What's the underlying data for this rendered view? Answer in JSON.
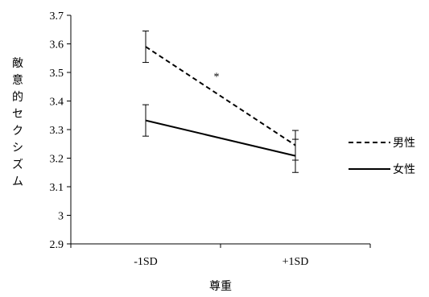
{
  "chart_data": {
    "type": "line",
    "categories": [
      "-1SD",
      "+1SD"
    ],
    "xlabel": "尊重",
    "ylabel": "敵意的セクシズム",
    "ylim": [
      2.9,
      3.7
    ],
    "yticks": [
      "2.9",
      "3",
      "3.1",
      "3.2",
      "3.3",
      "3.4",
      "3.5",
      "3.6",
      "3.7"
    ],
    "grid": false,
    "legend_position": "right",
    "series": [
      {
        "name": "男性",
        "line_style": "dashed",
        "color": "#000000",
        "values": [
          3.59,
          3.245
        ],
        "errors": [
          0.055,
          0.052
        ]
      },
      {
        "name": "女性",
        "line_style": "solid",
        "color": "#000000",
        "values": [
          3.332,
          3.208
        ],
        "errors": [
          0.055,
          0.058
        ]
      }
    ],
    "annotations": [
      {
        "text": "*",
        "x": 0.5,
        "y": 3.49
      }
    ]
  }
}
